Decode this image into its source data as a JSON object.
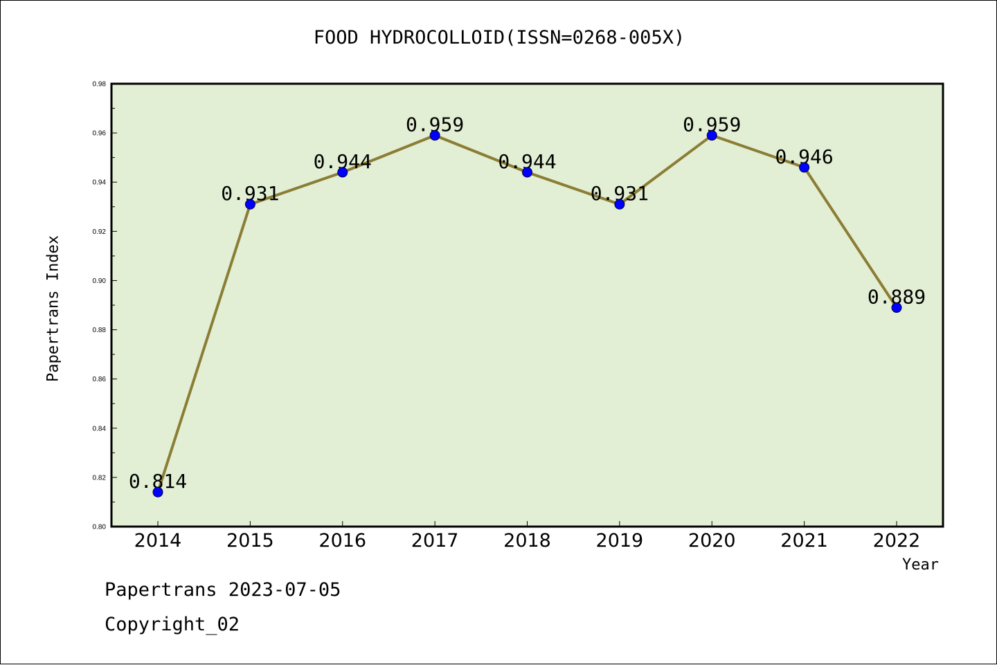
{
  "header": {
    "title": "FOOD HYDROCOLLOID(ISSN=0268-005X)"
  },
  "footer": {
    "date_line": "Papertrans 2023-07-05",
    "copyright": "Copyright_02"
  },
  "colors": {
    "plot_bg": "#e2efd4",
    "line": "#8b7d35",
    "marker": "#0000ff"
  },
  "chart_data": {
    "type": "line",
    "ylabel": "Papertrans Index",
    "xlabel": "Year",
    "ylim": [
      0.8,
      0.98
    ],
    "yticks": [
      "0.80",
      "0.82",
      "0.84",
      "0.86",
      "0.88",
      "0.90",
      "0.92",
      "0.94",
      "0.96",
      "0.98"
    ],
    "categories": [
      "2014",
      "2015",
      "2016",
      "2017",
      "2018",
      "2019",
      "2020",
      "2021",
      "2022"
    ],
    "values": [
      0.814,
      0.931,
      0.944,
      0.959,
      0.944,
      0.931,
      0.959,
      0.946,
      0.889
    ],
    "data_labels": [
      "0.814",
      "0.931",
      "0.944",
      "0.959",
      "0.944",
      "0.931",
      "0.959",
      "0.946",
      "0.889"
    ],
    "grid": false,
    "legend": "none"
  }
}
